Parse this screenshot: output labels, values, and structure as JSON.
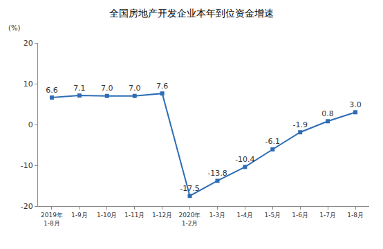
{
  "chart_data": {
    "type": "line",
    "title": "全国房地产开发企业本年到位资金增速",
    "y_label": "(%)",
    "categories": [
      "2019年\n1-8月",
      "1-9月",
      "1-10月",
      "1-11月",
      "1-12月",
      "2020年\n1-2月",
      "1-3月",
      "1-4月",
      "1-5月",
      "1-6月",
      "1-7月",
      "1-8月"
    ],
    "values": [
      6.6,
      7.1,
      7.0,
      7.0,
      7.6,
      -17.5,
      -13.8,
      -10.4,
      -6.1,
      -1.9,
      0.8,
      3.0
    ],
    "value_labels": [
      "6.6",
      "7.1",
      "7.0",
      "7.0",
      "7.6",
      "-17.5",
      "-13.8",
      "-10.4",
      "-6.1",
      "-1.9",
      "0.8",
      "3.0"
    ],
    "color": "#2e6db4",
    "marker": "square",
    "line_style": "solid",
    "data_labels": true,
    "ylim": [
      -20,
      20
    ],
    "yticks": [
      -20,
      -10,
      0,
      10,
      20
    ],
    "grid": false
  }
}
